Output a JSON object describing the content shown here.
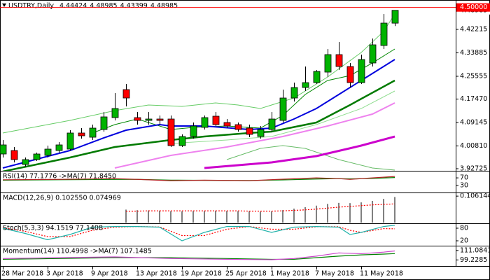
{
  "chart_data": [
    {
      "type": "candlestick",
      "title": "USDTRY,Daily",
      "categories": [
        "28 Mar 2018",
        null,
        null,
        null,
        "3 Apr 2018",
        null,
        null,
        null,
        "9 Apr 2018",
        null,
        null,
        null,
        "13 Apr 2018",
        null,
        null,
        null,
        "19 Apr 2018",
        null,
        null,
        null,
        "25 Apr 2018",
        null,
        null,
        null,
        "1 May 2018",
        null,
        null,
        null,
        "7 May 2018",
        null,
        null,
        null,
        "11 May 2018",
        null,
        null,
        null
      ],
      "open": [
        3.9795,
        3.9919,
        3.9422,
        3.9596,
        3.9745,
        3.9919,
        3.9969,
        4.0541,
        4.0391,
        4.0665,
        4.1088,
        4.2083,
        4.1088,
        4.0988,
        4.1038,
        4.1038,
        4.0093,
        4.0416,
        4.074,
        4.1138,
        4.0914,
        4.0839,
        4.0715,
        4.0416,
        4.0665,
        4.0988,
        4.1784,
        4.2157,
        4.2331,
        4.2704,
        4.3326,
        4.2903,
        4.2331,
        4.3028,
        4.365,
        4.44424
      ],
      "high": [
        4.0292,
        4.0044,
        3.967,
        3.9845,
        4.0093,
        4.0217,
        4.064,
        4.0715,
        4.0839,
        4.1287,
        4.1958,
        4.2282,
        4.1287,
        4.1287,
        4.1162,
        4.1162,
        4.0491,
        4.0914,
        4.1162,
        4.1287,
        4.1038,
        4.0914,
        4.0839,
        4.0789,
        4.1287,
        4.2083,
        4.2331,
        4.2903,
        4.2779,
        4.3525,
        4.3774,
        4.3028,
        4.3326,
        4.3898,
        4.4769,
        4.48985
      ],
      "low": [
        3.967,
        3.9496,
        3.9347,
        3.9546,
        3.967,
        3.9845,
        3.9919,
        4.0342,
        4.0292,
        4.059,
        4.0988,
        4.1486,
        4.0839,
        4.0839,
        4.0839,
        4.0044,
        4.0044,
        4.0342,
        4.0665,
        4.0789,
        4.0715,
        4.059,
        4.0391,
        4.0342,
        4.059,
        4.0914,
        4.166,
        4.2033,
        4.2282,
        4.253,
        4.2779,
        4.2157,
        4.2282,
        4.2903,
        4.3525,
        4.43399
      ],
      "close": [
        4.0118,
        3.9596,
        3.9596,
        3.9795,
        3.9969,
        4.0118,
        4.0541,
        4.0441,
        4.0715,
        4.1113,
        4.1411,
        4.1784,
        4.0988,
        4.1038,
        4.0988,
        4.0093,
        4.0416,
        4.0789,
        4.1088,
        4.0839,
        4.0789,
        4.0665,
        4.0491,
        4.0665,
        4.1038,
        4.1784,
        4.2157,
        4.2331,
        4.2729,
        4.3326,
        4.2903,
        4.2331,
        4.3152,
        4.3674,
        4.4445,
        4.48985
      ],
      "up_color": "#00b400",
      "down_color": "#ff0000",
      "series": [
        {
          "color": "#66cc66",
          "x": [
            0,
            6,
            10,
            13,
            16,
            19,
            21,
            23,
            26,
            29,
            32,
            34,
            35
          ],
          "values": [
            4.0541,
            4.0988,
            4.1337,
            4.1536,
            4.1486,
            4.161,
            4.1536,
            4.1411,
            4.1784,
            4.253,
            4.3401,
            4.4147,
            4.4769
          ]
        },
        {
          "color": "#66bb66",
          "x": [
            20,
            23,
            25,
            27,
            30,
            33,
            35
          ],
          "values": [
            3.9596,
            3.9994,
            4.0093,
            3.9994,
            3.9596,
            3.9297,
            3.9223
          ]
        },
        {
          "color": "#90dd90",
          "x": [
            15,
            20,
            24,
            28,
            32,
            35
          ],
          "values": [
            4.0168,
            4.0292,
            4.0416,
            4.0839,
            4.1411,
            4.2033
          ]
        },
        {
          "color": "#ee82ee",
          "x": [
            10,
            15,
            20,
            25,
            29,
            33,
            35
          ],
          "values": [
            3.9297,
            3.9745,
            4.0044,
            4.0416,
            4.0789,
            4.1212,
            4.161
          ]
        },
        {
          "color": "#cc00cc",
          "x": [
            18,
            24,
            28,
            32,
            35
          ],
          "values": [
            3.9297,
            3.9496,
            3.972,
            4.0093,
            4.0416
          ]
        },
        {
          "color": "#007a00",
          "x": [
            0,
            6,
            10,
            15,
            18,
            22,
            24,
            28,
            31,
            35
          ],
          "values": [
            3.9173,
            3.967,
            4.0044,
            4.0292,
            4.0416,
            4.0541,
            4.059,
            4.0914,
            4.1536,
            4.2406
          ]
        },
        {
          "color": "#008800",
          "x": [
            8,
            10,
            12,
            15,
            17,
            20,
            23,
            25,
            27,
            29,
            31,
            33,
            35
          ],
          "values": [
            4.0541,
            4.0839,
            4.1038,
            4.0665,
            4.074,
            4.0789,
            4.0715,
            4.1162,
            4.1909,
            4.2406,
            4.258,
            4.3028,
            4.3525
          ]
        },
        {
          "color": "#0000dd",
          "x": [
            0,
            6,
            9,
            11,
            14,
            15,
            18,
            22,
            24,
            26,
            28,
            30,
            32,
            35
          ],
          "values": [
            3.9297,
            3.9919,
            4.0366,
            4.064,
            4.0839,
            4.0789,
            4.0789,
            4.0665,
            4.0715,
            4.1038,
            4.1411,
            4.1909,
            4.2406,
            4.3152
          ]
        }
      ],
      "hline": {
        "value": 4.5,
        "label": "4.50000",
        "color": "#ff0000"
      },
      "ylim": [
        3.9223,
        4.5191
      ],
      "yticks": [
        4.42215,
        4.33885,
        4.25555,
        {
          "value": 4.1747,
          "label": "4.17470"
        },
        4.09145,
        {
          "value": 4.0081,
          "label": "4.00810"
        },
        3.92725
      ],
      "grid": false
    },
    {
      "type": "line",
      "title": "RSI(14) 77.1776 ->MA(7) 71.8450",
      "ylim": [
        0,
        100
      ],
      "yticks": [
        70,
        30
      ],
      "series": [
        {
          "color": "#008000",
          "x": [
            0,
            5,
            10,
            12,
            15,
            18,
            22,
            25,
            28,
            30,
            31,
            33,
            35
          ],
          "values": [
            58,
            60,
            62,
            62,
            58,
            57,
            56,
            59,
            64,
            66,
            65,
            67,
            71.845
          ]
        },
        {
          "color": "#b22222",
          "x": [
            0,
            5,
            10,
            12,
            15,
            18,
            22,
            25,
            28,
            30,
            31,
            33,
            35
          ],
          "values": [
            60,
            62,
            66,
            62,
            55,
            58,
            55,
            63,
            70,
            66,
            62,
            70,
            77.1776
          ]
        }
      ]
    },
    {
      "type": "bar",
      "title": "MACD(12,26,9) 0.102550 0.074969",
      "ylim": [
        0,
        0.115
      ],
      "yticks": [
        0.106144
      ],
      "series": [
        {
          "type": "bar",
          "color": "#808080",
          "x": [
            11,
            12,
            13,
            14,
            15,
            16,
            17,
            18,
            19,
            20,
            21,
            22,
            23,
            24,
            25,
            26,
            27,
            28,
            29,
            30,
            31,
            32,
            33,
            34,
            35
          ],
          "values": [
            0.052,
            0.05,
            0.049,
            0.048,
            0.046,
            0.045,
            0.046,
            0.047,
            0.048,
            0.047,
            0.046,
            0.045,
            0.044,
            0.045,
            0.05,
            0.056,
            0.062,
            0.068,
            0.075,
            0.079,
            0.078,
            0.081,
            0.087,
            0.095,
            0.10255
          ]
        },
        {
          "type": "line",
          "dash": true,
          "color": "#ff0000",
          "x": [
            11,
            12,
            13,
            14,
            15,
            16,
            17,
            18,
            19,
            20,
            21,
            22,
            23,
            24,
            25,
            26,
            27,
            28,
            29,
            30,
            31,
            32,
            33,
            34,
            35
          ],
          "values": [
            0.045,
            0.046,
            0.047,
            0.047,
            0.047,
            0.047,
            0.047,
            0.047,
            0.047,
            0.047,
            0.047,
            0.046,
            0.046,
            0.046,
            0.047,
            0.049,
            0.051,
            0.054,
            0.058,
            0.062,
            0.065,
            0.068,
            0.071,
            0.073,
            0.074969
          ]
        }
      ]
    },
    {
      "type": "line",
      "title": "Stoch(5,3,3) 94.1519 77.1408",
      "ylim": [
        0,
        100
      ],
      "yticks": [
        80,
        20
      ],
      "series": [
        {
          "color": "#ff0000",
          "dash": true,
          "x": [
            0,
            2,
            4,
            6,
            8,
            10,
            12,
            14,
            16,
            18,
            20,
            22,
            24,
            26,
            28,
            30,
            31,
            32,
            34,
            35
          ],
          "values": [
            82,
            65,
            40,
            40,
            70,
            85,
            88,
            86,
            45,
            45,
            75,
            88,
            75,
            75,
            87,
            87,
            70,
            60,
            78,
            77.1408
          ]
        },
        {
          "color": "#20b2aa",
          "x": [
            0,
            2,
            4,
            6,
            8,
            10,
            12,
            14,
            16,
            18,
            20,
            22,
            24,
            26,
            28,
            30,
            31,
            32,
            34,
            35
          ],
          "values": [
            80,
            55,
            25,
            50,
            85,
            88,
            88,
            85,
            20,
            60,
            88,
            88,
            60,
            85,
            88,
            85,
            50,
            60,
            88,
            94.1519
          ]
        }
      ]
    },
    {
      "type": "line",
      "title": "Momentum(14) 110.4998 ->MA(7) 107.1485",
      "ylim": [
        91.6,
        115.3
      ],
      "yticks": [
        111.0841,
        99.2285
      ],
      "series": [
        {
          "color": "#008000",
          "x": [
            0,
            5,
            10,
            15,
            20,
            24,
            26,
            28,
            29,
            30,
            32,
            34,
            35
          ],
          "values": [
            100,
            101,
            102,
            102,
            101,
            100,
            100,
            102,
            103,
            104,
            105.5,
            106.5,
            107.1485
          ]
        },
        {
          "color": "#cc44cc",
          "x": [
            0,
            5,
            10,
            15,
            20,
            24,
            26,
            28,
            29,
            30,
            32,
            34,
            35
          ],
          "values": [
            101,
            102,
            103,
            101,
            100,
            99.5,
            101,
            104,
            106,
            108,
            107,
            109,
            110.4998
          ]
        }
      ]
    }
  ]
}
